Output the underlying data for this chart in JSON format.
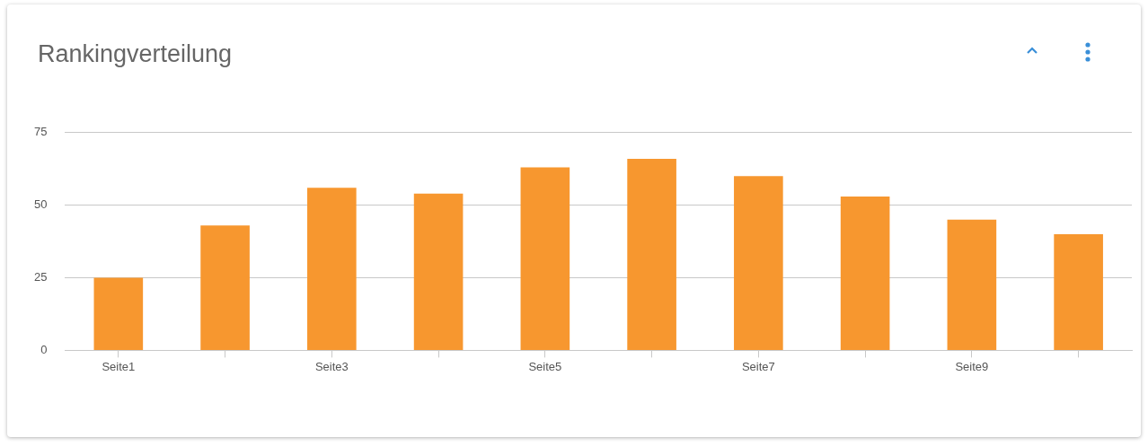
{
  "chart_data": {
    "type": "bar",
    "title": "Rankingverteilung",
    "categories": [
      "Seite1",
      null,
      "Seite3",
      null,
      "Seite5",
      null,
      "Seite7",
      null,
      "Seite9",
      null
    ],
    "series": [
      {
        "color": "#f7972f",
        "values": [
          25,
          43,
          56,
          54,
          63,
          66,
          60,
          53,
          45,
          40
        ]
      }
    ],
    "ylim": [
      0,
      75
    ],
    "yticks": [
      0,
      25,
      50,
      75
    ],
    "grid": "y",
    "legend": false
  }
}
